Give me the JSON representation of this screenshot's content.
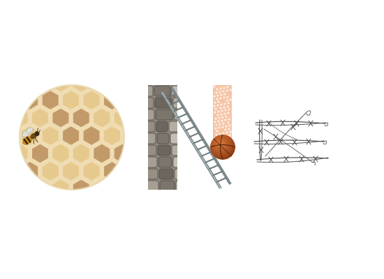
{
  "artwork": {
    "word_letters": [
      "O",
      "N",
      "E"
    ],
    "letters": [
      {
        "letter": "O",
        "depicts": "honeycomb-with-bee"
      },
      {
        "letter": "N",
        "depicts": "stone-wall-ladder-basketball"
      },
      {
        "letter": "E",
        "depicts": "barbed-wire"
      }
    ],
    "colors": {
      "background": "#ffffff",
      "honeycomb_cell": "#e6c98c",
      "honeycomb_dark": "#c29a6a",
      "honeycomb_rim": "#efdcb3",
      "stone_dark": "#6f6a62",
      "stone_light": "#b9b3a8",
      "ladder": "#7d8a8e",
      "basketball": "#b5521f",
      "peach_stripe": "#f4b48f",
      "wire": "#555555"
    }
  }
}
